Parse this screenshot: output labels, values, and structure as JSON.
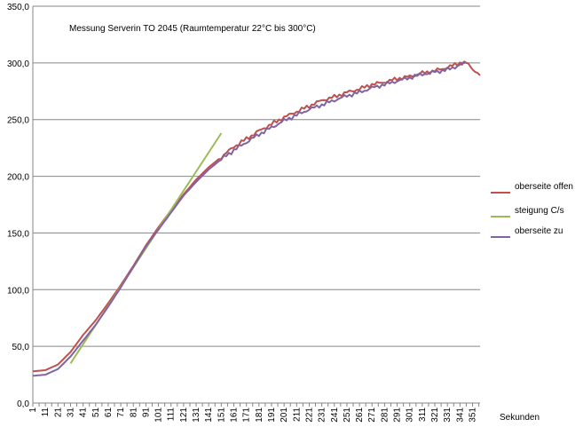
{
  "chart_data": {
    "type": "line",
    "title": "Messung Serverin TO 2045 (Raumtemperatur 22°C bis 300°C)",
    "xlabel": "Sekunden",
    "ylabel": "",
    "ylim": [
      0,
      350
    ],
    "yticks": [
      "0,0",
      "50,0",
      "100,0",
      "150,0",
      "200,0",
      "250,0",
      "300,0",
      "350,0"
    ],
    "xlim": [
      1,
      357
    ],
    "xticks": [
      "1",
      "11",
      "21",
      "31",
      "41",
      "51",
      "61",
      "71",
      "81",
      "91",
      "101",
      "111",
      "121",
      "131",
      "141",
      "151",
      "161",
      "171",
      "181",
      "191",
      "201",
      "211",
      "221",
      "231",
      "241",
      "251",
      "261",
      "271",
      "281",
      "291",
      "301",
      "311",
      "321",
      "331",
      "341",
      "351"
    ],
    "grid": "horizontal",
    "legend_position": "right",
    "series": [
      {
        "name": "oberseite offen",
        "color": "#c0504d",
        "x": [
          1,
          11,
          21,
          31,
          41,
          51,
          61,
          71,
          81,
          91,
          101,
          111,
          121,
          131,
          141,
          151,
          161,
          171,
          181,
          191,
          201,
          211,
          221,
          231,
          241,
          251,
          261,
          271,
          281,
          291,
          301,
          311,
          321,
          331,
          341,
          346,
          351,
          357
        ],
        "y": [
          28,
          29,
          34,
          45,
          60,
          73,
          88,
          104,
          121,
          139,
          155,
          170,
          184,
          197,
          208,
          217,
          226,
          233,
          240,
          246,
          252,
          257,
          262,
          267,
          270,
          274,
          277,
          281,
          283,
          286,
          288,
          291,
          293,
          296,
          300,
          300,
          295,
          289
        ]
      },
      {
        "name": "steigung C/s",
        "color": "#9bbb59",
        "x": [
          31,
          151
        ],
        "y": [
          35,
          238
        ]
      },
      {
        "name": "oberseite zu",
        "color": "#8064a2",
        "x": [
          1,
          11,
          21,
          31,
          41,
          51,
          61,
          71,
          81,
          91,
          101,
          111,
          121,
          131,
          141,
          151,
          161,
          171,
          181,
          191,
          201,
          211,
          221,
          231,
          241,
          251,
          261,
          271,
          281,
          291,
          301,
          311,
          321,
          331,
          341,
          346
        ],
        "y": [
          24,
          25,
          30,
          41,
          55,
          69,
          85,
          102,
          120,
          138,
          153,
          168,
          183,
          195,
          206,
          215,
          223,
          230,
          237,
          243,
          249,
          254,
          259,
          263,
          267,
          271,
          274,
          278,
          281,
          284,
          287,
          290,
          292,
          294,
          298,
          301
        ]
      }
    ]
  }
}
